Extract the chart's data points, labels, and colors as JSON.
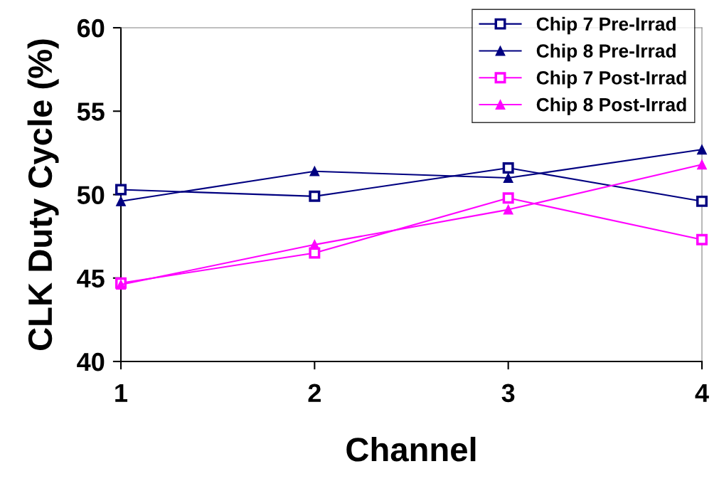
{
  "chart_data": {
    "type": "line",
    "xlabel": "Channel",
    "ylabel": "CLK Duty Cycle (%)",
    "x": [
      1,
      2,
      3,
      4
    ],
    "xlim": [
      1,
      4
    ],
    "xticks": [
      1,
      2,
      3,
      4
    ],
    "ylim": [
      40,
      60
    ],
    "yticks": [
      40,
      45,
      50,
      55,
      60
    ],
    "grid": false,
    "legend": "top right",
    "line_style": "solid",
    "series": [
      {
        "name": "Chip 7 Pre-Irrad",
        "color": "#000080",
        "marker": "square",
        "values": [
          50.3,
          49.9,
          51.6,
          49.6
        ]
      },
      {
        "name": "Chip 8 Pre-Irrad",
        "color": "#000080",
        "marker": "triangle",
        "values": [
          49.6,
          51.4,
          51.0,
          52.7
        ]
      },
      {
        "name": "Chip 7 Post-Irrad",
        "color": "#ff00ff",
        "marker": "square",
        "values": [
          44.7,
          46.5,
          49.8,
          47.3
        ]
      },
      {
        "name": "Chip 8 Post-Irrad",
        "color": "#ff00ff",
        "marker": "triangle",
        "values": [
          44.6,
          47.0,
          49.1,
          51.8
        ]
      }
    ]
  }
}
